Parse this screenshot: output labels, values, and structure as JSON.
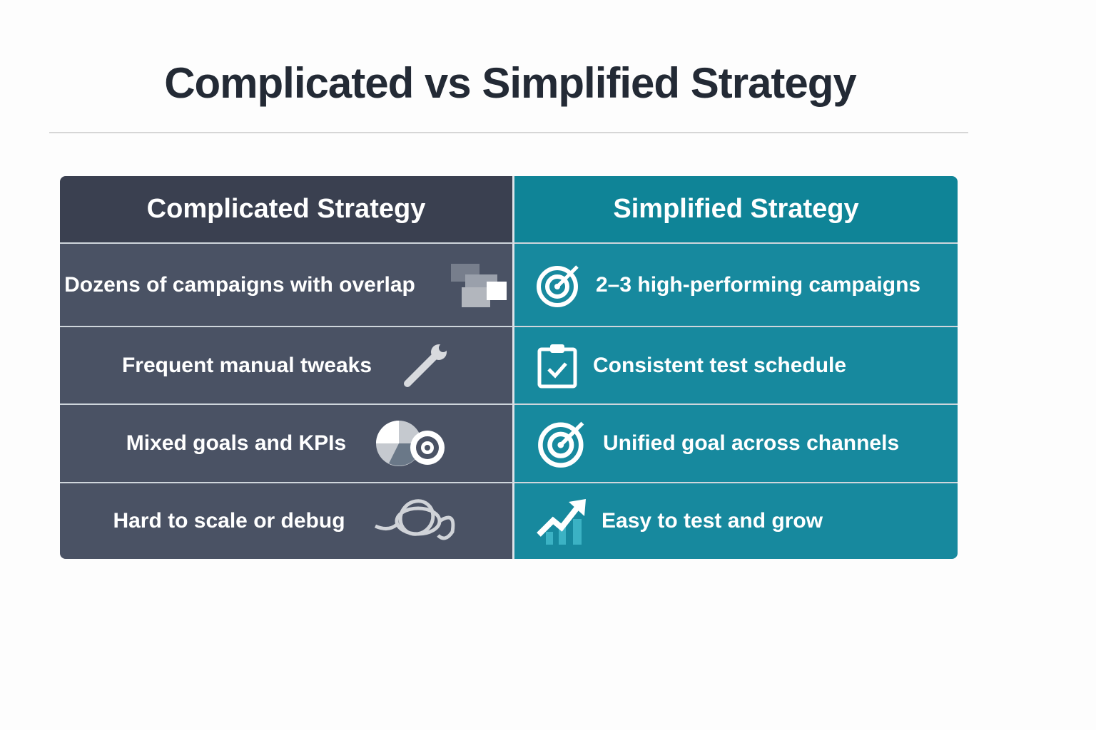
{
  "title": "Complicated vs Simplified Strategy",
  "columns": {
    "left": "Complicated Strategy",
    "right": "Simplified Strategy"
  },
  "rows": [
    {
      "left": "Dozens of campaigns with overlap",
      "left_icon": "overlapping-windows-icon",
      "right": "2–3 high-performing campaigns",
      "right_icon": "target-icon"
    },
    {
      "left": "Frequent manual tweaks",
      "left_icon": "wrench-icon",
      "right": "Consistent test schedule",
      "right_icon": "clipboard-check-icon"
    },
    {
      "left": "Mixed goals and KPIs",
      "left_icon": "pie-chart-target-icon",
      "right": "Unified goal across channels",
      "right_icon": "target-icon"
    },
    {
      "left": "Hard to scale or debug",
      "left_icon": "tangled-knot-icon",
      "right": "Easy to test and grow",
      "right_icon": "growth-chart-icon"
    }
  ],
  "colors": {
    "left": "#4a5264",
    "right": "#17899e",
    "title": "#232a35"
  }
}
